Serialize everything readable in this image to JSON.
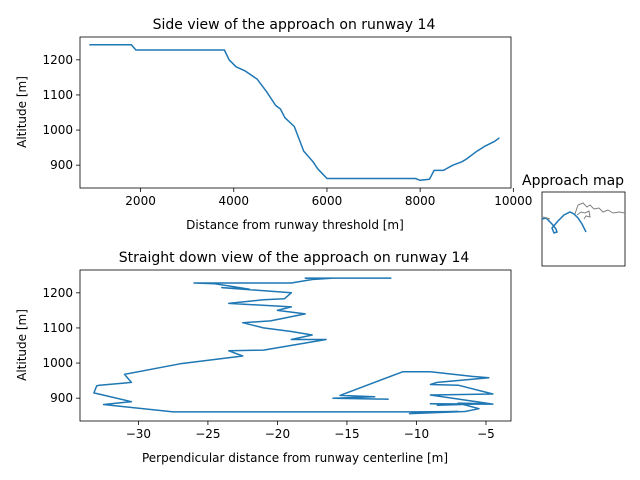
{
  "chart_data": [
    {
      "type": "line",
      "title": "Side view of the approach on runway 14",
      "xlabel": "Distance from runway threshold [m]",
      "ylabel": "Altitude [m]",
      "xlim": [
        700,
        9950
      ],
      "ylim": [
        835,
        1265
      ],
      "xticks": [
        2000,
        4000,
        6000,
        8000,
        10000
      ],
      "yticks": [
        900,
        1000,
        1100,
        1200
      ],
      "color": "#1f77b4",
      "series": [
        {
          "x": [
            900,
            1800,
            1900,
            3800,
            3900,
            4050,
            4250,
            4500,
            4700,
            4900,
            5000,
            5100,
            5300,
            5500,
            5700,
            5800,
            6000,
            7000,
            7900,
            8000,
            8200,
            8300,
            8500,
            8700,
            8900,
            9000,
            9200,
            9400,
            9600,
            9700
          ],
          "y": [
            1243,
            1243,
            1228,
            1228,
            1200,
            1180,
            1168,
            1145,
            1110,
            1070,
            1060,
            1035,
            1010,
            940,
            910,
            890,
            862,
            862,
            862,
            857,
            860,
            885,
            885,
            900,
            910,
            918,
            938,
            955,
            968,
            978
          ]
        }
      ]
    },
    {
      "type": "line",
      "title": "Straight down view of the approach on runway 14",
      "xlabel": "Perpendicular distance from runway centerline [m]",
      "ylabel": "Altitude [m]",
      "xlim": [
        -34.2,
        -3.2
      ],
      "ylim": [
        835,
        1265
      ],
      "xticks": [
        -30,
        -25,
        -20,
        -15,
        -10,
        -5
      ],
      "yticks": [
        900,
        1000,
        1100,
        1200
      ],
      "color": "#1f77b4",
      "series": [
        {
          "x": [
            -11.8,
            -18.0,
            -17.5,
            -16.0,
            -17.5,
            -19.0,
            -26.0,
            -24.5,
            -22.0,
            -24.0,
            -19.0,
            -19.5,
            -21.0,
            -23.5,
            -19.0,
            -20.0,
            -18.0,
            -20.5,
            -22.5,
            -21.0,
            -19.0,
            -17.5,
            -19.0,
            -16.5,
            -21.0,
            -23.5,
            -22.5,
            -27.0,
            -31.0,
            -30.5,
            -32.8,
            -33.0,
            -33.2,
            -30.5,
            -32.5,
            -27.5,
            -23.0,
            -16.0,
            -10.0,
            -7.0,
            -9.0,
            -10.5,
            -6.5,
            -5.5,
            -7.0,
            -5.0,
            -8.5,
            -8.0,
            -9.0,
            -4.5,
            -9.0,
            -4.5,
            -7.0,
            -9.0,
            -8.5,
            -4.8,
            -6.0,
            -9.0,
            -11.0,
            -15.5,
            -13.0,
            -16.0,
            -12.0
          ],
          "y": [
            1242,
            1242,
            1240,
            1242,
            1238,
            1228,
            1228,
            1226,
            1210,
            1215,
            1200,
            1183,
            1180,
            1170,
            1160,
            1150,
            1140,
            1120,
            1115,
            1100,
            1090,
            1080,
            1067,
            1067,
            1037,
            1035,
            1020,
            998,
            968,
            945,
            937,
            935,
            915,
            890,
            882,
            861,
            861,
            861,
            861,
            862,
            861,
            856,
            862,
            870,
            886,
            884,
            880,
            883,
            884,
            883,
            909,
            912,
            937,
            939,
            945,
            958,
            962,
            975,
            975,
            908,
            904,
            900,
            897
          ]
        }
      ]
    },
    {
      "type": "line",
      "title": "Approach map",
      "series": [
        {
          "name": "runway-outline",
          "color": "#808080",
          "values": []
        },
        {
          "name": "approach-path",
          "color": "#1f77b4",
          "values": []
        }
      ]
    }
  ]
}
